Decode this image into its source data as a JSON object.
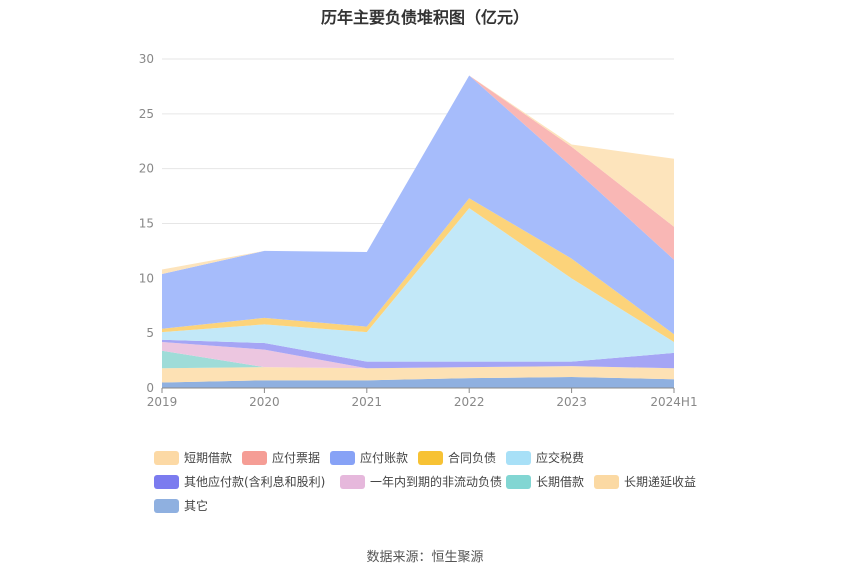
{
  "title": "历年主要负债堆积图（亿元）",
  "source": "数据来源：恒生聚源",
  "chart_data": {
    "type": "area",
    "stacked": true,
    "categories": [
      "2019",
      "2020",
      "2021",
      "2022",
      "2023",
      "2024H1"
    ],
    "ylim": [
      0,
      30
    ],
    "yticks": [
      0,
      5,
      10,
      15,
      20,
      25,
      30
    ],
    "grid": true,
    "legend_position": "bottom",
    "series": [
      {
        "name": "其它",
        "color": "#8fb0e0",
        "values": [
          0.5,
          0.7,
          0.7,
          0.9,
          1.0,
          0.8
        ]
      },
      {
        "name": "长期递延收益",
        "color": "#fde1b4",
        "values": [
          1.3,
          1.2,
          1.1,
          1.0,
          1.0,
          1.0
        ]
      },
      {
        "name": "长期借款",
        "color": "#9fdcd8",
        "values": [
          1.6,
          0.0,
          0.0,
          0.0,
          0.0,
          0.0
        ]
      },
      {
        "name": "一年内到期的非流动负债",
        "color": "#ecc6e0",
        "values": [
          0.8,
          1.6,
          0.0,
          0.0,
          0.0,
          0.0
        ]
      },
      {
        "name": "其他应付款(含利息和股利)",
        "color": "#a5a5f5",
        "values": [
          0.2,
          0.6,
          0.6,
          0.5,
          0.4,
          1.4
        ]
      },
      {
        "name": "应交税费",
        "color": "#c2e8f8",
        "values": [
          0.7,
          1.7,
          2.7,
          14.0,
          7.6,
          1.0
        ]
      },
      {
        "name": "合同负债",
        "color": "#fcd37a",
        "values": [
          0.3,
          0.6,
          0.5,
          0.9,
          1.8,
          0.7
        ]
      },
      {
        "name": "应付账款",
        "color": "#a6bcfb",
        "values": [
          5.0,
          6.1,
          6.8,
          11.2,
          8.4,
          6.8
        ]
      },
      {
        "name": "应付票据",
        "color": "#f9b7b5",
        "values": [
          0.0,
          0.0,
          0.0,
          0.0,
          1.8,
          3.0
        ]
      },
      {
        "name": "短期借款",
        "color": "#fde4bc",
        "values": [
          0.4,
          0.0,
          0.0,
          0.0,
          0.2,
          6.2
        ]
      }
    ]
  },
  "legend": [
    {
      "label": "短期借款",
      "color": "#fcd9a5"
    },
    {
      "label": "应付票据",
      "color": "#f59d95"
    },
    {
      "label": "应付账款",
      "color": "#87a2f6"
    },
    {
      "label": "合同负债",
      "color": "#f7c234"
    },
    {
      "label": "应交税费",
      "color": "#a8e0f7"
    },
    {
      "label": "其他应付款(含利息和股利)",
      "color": "#7b7bef"
    },
    {
      "label": "一年内到期的非流动负债",
      "color": "#e6b8dc"
    },
    {
      "label": "长期借款",
      "color": "#82d6d3"
    },
    {
      "label": "长期递延收益",
      "color": "#fbd9a3"
    },
    {
      "label": "其它",
      "color": "#8fb0e0"
    }
  ]
}
